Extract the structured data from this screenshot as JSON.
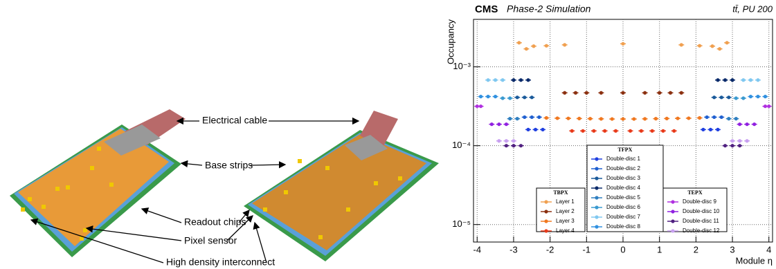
{
  "diagram": {
    "labels": [
      "Electrical cable",
      "Base strips",
      "Readout chips",
      "Pixel sensor",
      "High density interconnect"
    ]
  },
  "chart_data": {
    "type": "scatter",
    "title": "CMS",
    "subtitle": "Phase-2 Simulation",
    "annotation": "tt̄, PU 200",
    "x_label": "Module η",
    "y_label": "Occupancy",
    "xlim": [
      -4.1,
      4.1
    ],
    "xticks": [
      -4,
      -3,
      -2,
      -1,
      0,
      1,
      2,
      3,
      4
    ],
    "ylim": [
      6e-06,
      0.004
    ],
    "yscale": "log",
    "yticks": [
      {
        "value": 1e-05,
        "label": "10⁻⁵"
      },
      {
        "value": 0.0001,
        "label": "10⁻⁴"
      },
      {
        "value": 0.001,
        "label": "10⁻³"
      }
    ],
    "grid": true,
    "series_groups": [
      {
        "title": "TBPX",
        "series": [
          {
            "name": "Layer 1",
            "color": "#f0a050",
            "x": [
              -2.85,
              -2.65,
              -2.45,
              -2.1,
              -1.6,
              0,
              1.6,
              2.1,
              2.45,
              2.65,
              2.85
            ],
            "values": [
              0.00202,
              0.00169,
              0.00183,
              0.00185,
              0.0019,
              0.00196,
              0.0019,
              0.00185,
              0.00183,
              0.00169,
              0.00202
            ]
          },
          {
            "name": "Layer 2",
            "color": "#8b3010",
            "x": [
              -1.6,
              -1.3,
              -1.0,
              -0.6,
              0,
              0.6,
              1.0,
              1.3,
              1.6
            ],
            "values": [
              0.000468,
              0.000468,
              0.000468,
              0.000468,
              0.000468,
              0.000468,
              0.000468,
              0.000468,
              0.000468
            ]
          },
          {
            "name": "Layer 3",
            "color": "#f07820",
            "x": [
              -2.1,
              -1.8,
              -1.5,
              -1.2,
              -0.9,
              -0.6,
              -0.3,
              0,
              0.3,
              0.6,
              0.9,
              1.2,
              1.5,
              1.8,
              2.1
            ],
            "values": [
              0.000225,
              0.000223,
              0.000222,
              0.000221,
              0.00022,
              0.000219,
              0.000218,
              0.000218,
              0.000218,
              0.000219,
              0.00022,
              0.000221,
              0.000222,
              0.000223,
              0.000225
            ]
          },
          {
            "name": "Layer 4",
            "color": "#e83a1a",
            "x": [
              -1.4,
              -1.1,
              -0.8,
              -0.5,
              -0.2,
              0.2,
              0.5,
              0.8,
              1.1,
              1.4
            ],
            "values": [
              0.000154,
              0.000154,
              0.000154,
              0.000154,
              0.000154,
              0.000154,
              0.000154,
              0.000154,
              0.000154,
              0.000154
            ]
          }
        ]
      },
      {
        "title": "TFPX",
        "series": [
          {
            "name": "Double-disc 1",
            "color": "#1f3fe0",
            "x": [
              -2.6,
              -2.4,
              -2.2,
              2.2,
              2.4,
              2.6
            ],
            "values": [
              0.00016,
              0.00016,
              0.00016,
              0.00016,
              0.00016,
              0.00016
            ]
          },
          {
            "name": "Double-disc 2",
            "color": "#2060d0",
            "x": [
              -2.7,
              -2.5,
              -2.3,
              2.3,
              2.5,
              2.7
            ],
            "values": [
              0.00023,
              0.00023,
              0.00023,
              0.00023,
              0.00023,
              0.00023
            ]
          },
          {
            "name": "Double-disc 3",
            "color": "#1a5a9a",
            "x": [
              -2.9,
              -2.7,
              -2.5,
              2.5,
              2.7,
              2.9
            ],
            "values": [
              0.00041,
              0.00041,
              0.00041,
              0.00041,
              0.00041,
              0.00041
            ]
          },
          {
            "name": "Double-disc 4",
            "color": "#0a2a6a",
            "x": [
              -3.0,
              -2.8,
              -2.6,
              2.6,
              2.8,
              3.0
            ],
            "values": [
              0.00068,
              0.00068,
              0.00068,
              0.00068,
              0.00068,
              0.00068
            ]
          },
          {
            "name": "Double-disc 5",
            "color": "#2f7fc0",
            "x": [
              -3.1,
              -2.9,
              2.9,
              3.1
            ],
            "values": [
              0.00022,
              0.00022,
              0.00022,
              0.00022
            ]
          },
          {
            "name": "Double-disc 6",
            "color": "#3a9ad0",
            "x": [
              -3.3,
              -3.1,
              3.1,
              3.3
            ],
            "values": [
              0.0004,
              0.0004,
              0.0004,
              0.0004
            ]
          },
          {
            "name": "Double-disc 7",
            "color": "#80c8f0",
            "x": [
              -3.7,
              -3.5,
              -3.3,
              3.3,
              3.5,
              3.7
            ],
            "values": [
              0.00068,
              0.00068,
              0.00068,
              0.00068,
              0.00068,
              0.00068
            ]
          },
          {
            "name": "Double-disc 8",
            "color": "#3090e0",
            "x": [
              -3.9,
              -3.7,
              -3.5,
              3.5,
              3.7,
              3.9
            ],
            "values": [
              0.00042,
              0.00042,
              0.00042,
              0.00042,
              0.00042,
              0.00042
            ]
          }
        ]
      },
      {
        "title": "TEPX",
        "series": [
          {
            "name": "Double-disc 9",
            "color": "#b030e0",
            "x": [
              -4.0,
              -3.9,
              3.9,
              4.0
            ],
            "values": [
              0.000316,
              0.000316,
              0.000316,
              0.000316
            ]
          },
          {
            "name": "Double-disc 10",
            "color": "#9020e0",
            "x": [
              -3.6,
              -3.4,
              -3.2,
              3.2,
              3.4,
              3.6
            ],
            "values": [
              0.000187,
              0.000187,
              0.000187,
              0.000187,
              0.000187,
              0.000187
            ]
          },
          {
            "name": "Double-disc 11",
            "color": "#502080",
            "x": [
              -3.2,
              -3.0,
              -2.8,
              2.8,
              3.0,
              3.2
            ],
            "values": [
              0.0001,
              0.0001,
              0.0001,
              0.0001,
              0.0001,
              0.0001
            ]
          },
          {
            "name": "Double-disc 12",
            "color": "#c8a0f0",
            "x": [
              -3.4,
              -3.2,
              -3.0,
              3.0,
              3.2,
              3.4
            ],
            "values": [
              0.000115,
              0.000115,
              0.000115,
              0.000115,
              0.000115,
              0.000115
            ]
          }
        ]
      }
    ]
  }
}
